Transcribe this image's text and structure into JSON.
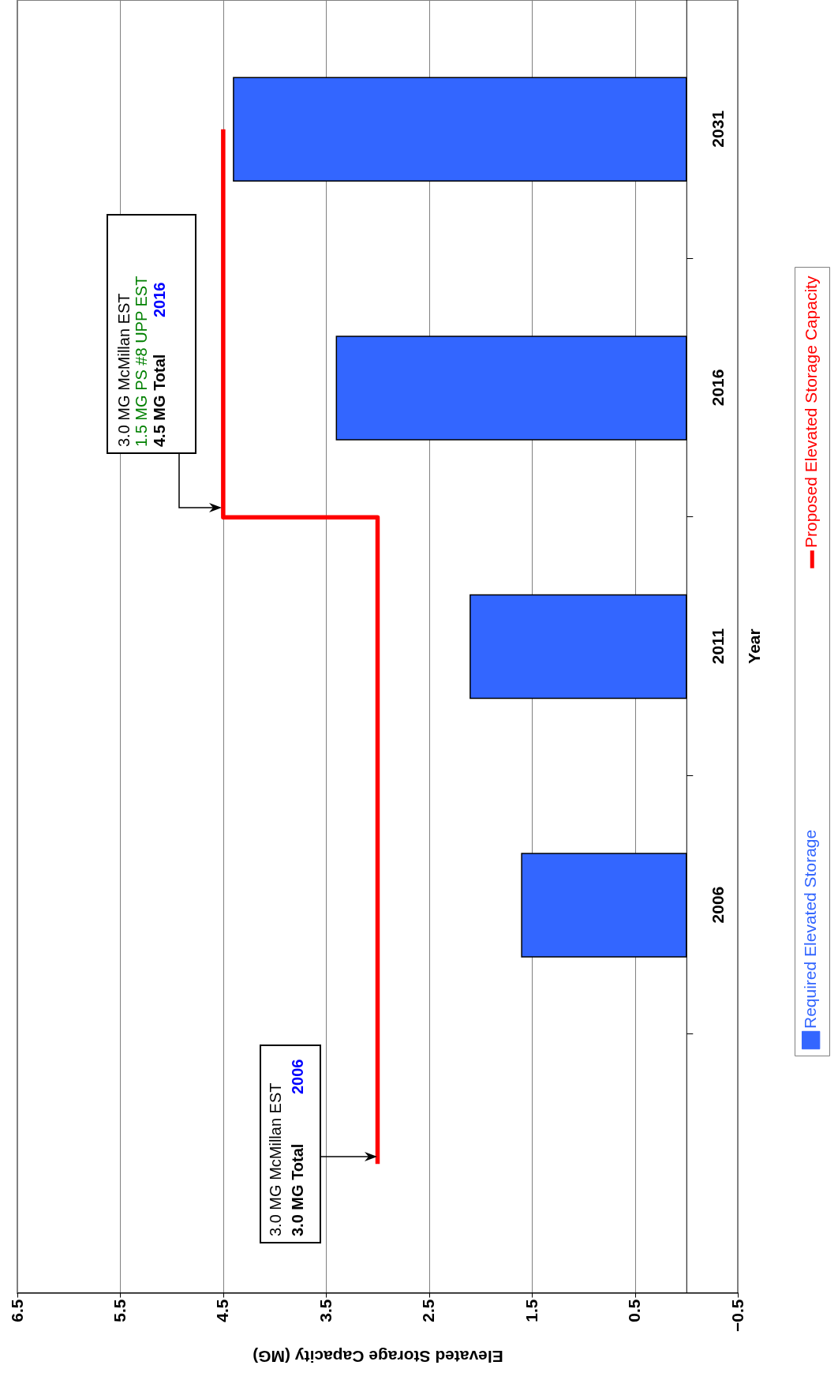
{
  "chart_data": {
    "type": "bar",
    "orientation": "horizontal",
    "xlabel": "Elevated Storage Capacity (MG)",
    "ylabel": "Year",
    "categories": [
      "2031",
      "2016",
      "2011",
      "2006",
      null
    ],
    "series": [
      {
        "name": "Required Elevated Storage",
        "color": "#3366ff",
        "values": [
          4.4,
          3.4,
          2.1,
          1.6,
          null
        ]
      },
      {
        "name": "Proposed Elevated Storage Capacity",
        "type": "step",
        "color": "#ff0000",
        "values": [
          4.5,
          4.5,
          3.0,
          3.0,
          3.0
        ]
      }
    ],
    "xlim": [
      6.5,
      -0.5
    ],
    "xticks": [
      6.5,
      5.5,
      4.5,
      3.5,
      2.5,
      1.5,
      0.5,
      -0.5
    ],
    "grid": "x",
    "legend": "right",
    "annotations": [
      "3.0 MG McMillan EST",
      "3.0 MG Total",
      "2006",
      "3.0 MG McMillan EST",
      "1.5 MG PS #8 UPP EST",
      "4.5 MG Total",
      "2016"
    ]
  }
}
